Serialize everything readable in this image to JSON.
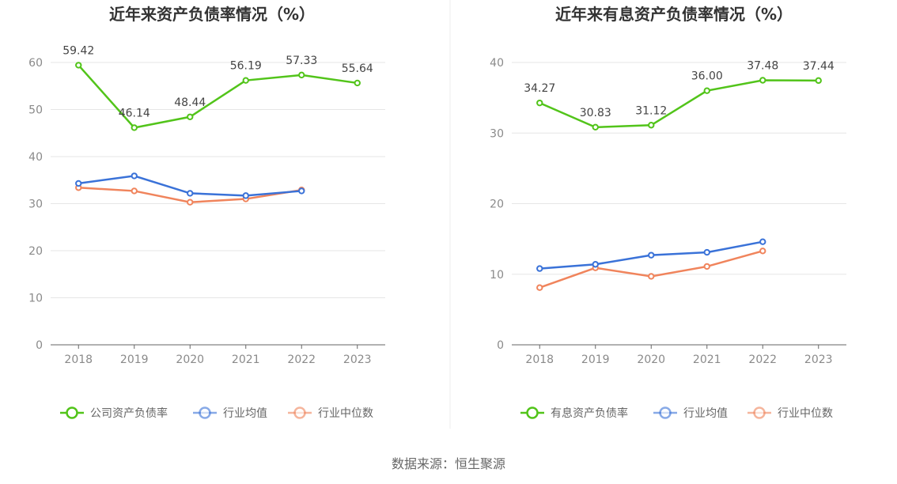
{
  "charts": {
    "chart_data": [
      {
        "type": "line",
        "title": "近年来资产负债率情况（%）",
        "categories": [
          "2018",
          "2019",
          "2020",
          "2021",
          "2022",
          "2023"
        ],
        "ylim": [
          0,
          60
        ],
        "yticks": [
          0,
          10,
          20,
          30,
          40,
          50,
          60
        ],
        "grid": true,
        "legend": "bottom",
        "series": [
          {
            "name": "公司资产负债率",
            "color": "#52c41a",
            "values": [
              59.42,
              46.14,
              48.44,
              56.19,
              57.33,
              55.64
            ],
            "labels": [
              "59.42",
              "46.14",
              "48.44",
              "56.19",
              "57.33",
              "55.64"
            ]
          },
          {
            "name": "行业均值",
            "color": "#3a72d8",
            "values": [
              34.3,
              35.9,
              32.2,
              31.7,
              32.7,
              null
            ]
          },
          {
            "name": "行业中位数",
            "color": "#f0845c",
            "values": [
              33.4,
              32.7,
              30.3,
              31.0,
              32.9,
              null
            ]
          }
        ]
      },
      {
        "type": "line",
        "title": "近年来有息资产负债率情况（%）",
        "categories": [
          "2018",
          "2019",
          "2020",
          "2021",
          "2022",
          "2023"
        ],
        "ylim": [
          0,
          40
        ],
        "yticks": [
          0,
          10,
          20,
          30,
          40
        ],
        "grid": true,
        "legend": "bottom",
        "series": [
          {
            "name": "有息资产负债率",
            "color": "#52c41a",
            "values": [
              34.27,
              30.83,
              31.12,
              36.0,
              37.48,
              37.44
            ],
            "labels": [
              "34.27",
              "30.83",
              "31.12",
              "36.00",
              "37.48",
              "37.44"
            ]
          },
          {
            "name": "行业均值",
            "color": "#3a72d8",
            "values": [
              10.8,
              11.4,
              12.7,
              13.1,
              14.6,
              null
            ]
          },
          {
            "name": "行业中位数",
            "color": "#f0845c",
            "values": [
              8.1,
              10.9,
              9.7,
              11.1,
              13.3,
              null
            ]
          }
        ]
      }
    ]
  },
  "footer": {
    "source": "数据来源：恒生聚源"
  }
}
